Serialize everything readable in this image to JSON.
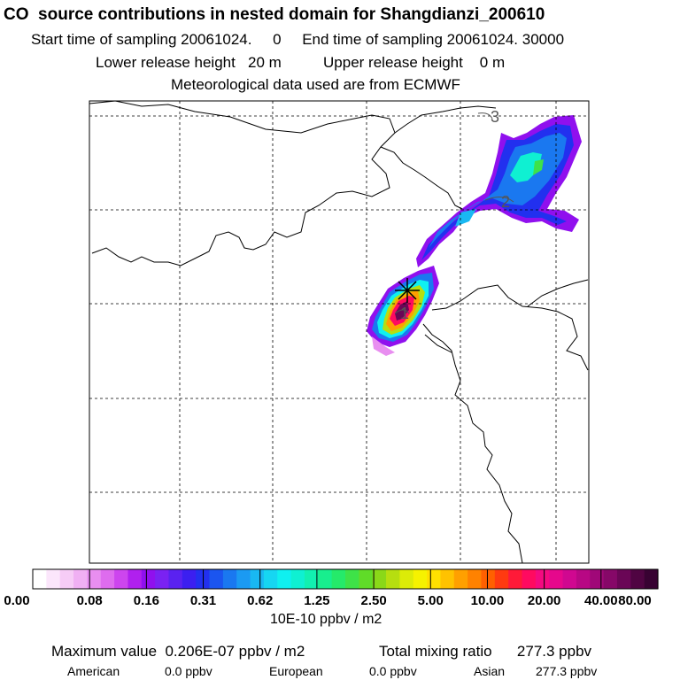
{
  "header": {
    "title": "CO  source contributions in nested domain for Shangdianzi_200610",
    "start_label": "Start time of sampling 20061024.",
    "start_hour": "0",
    "end_label": "End time of sampling 20061024. 30000",
    "lower_label": "Lower release height",
    "lower_value": "20 m",
    "upper_label": "Upper release height",
    "upper_value": "0 m",
    "met_line": "Meteorological data used are from ECMWF"
  },
  "map": {
    "contour_labels": [
      "3",
      "2",
      "1"
    ],
    "station_marker": "star",
    "gridlines": "dashed"
  },
  "colorbar": {
    "tick_labels": [
      "0.00",
      "0.08",
      "0.16",
      "0.31",
      "0.62",
      "1.25",
      "2.50",
      "5.00",
      "10.00",
      "20.00",
      "40.00",
      "80.00"
    ],
    "units": "10E-10 ppbv / m2",
    "colors": [
      "#ffffff",
      "#fbe6fb",
      "#f6ccf6",
      "#f0b0f3",
      "#e88ef0",
      "#de6cee",
      "#cd45ee",
      "#b020ee",
      "#9010ee",
      "#7a22f2",
      "#5a22f0",
      "#3c1ff0",
      "#2230ef",
      "#1b55ef",
      "#1a78f0",
      "#1b9af2",
      "#19b8f2",
      "#16d6f2",
      "#0ff0f0",
      "#0ff0d2",
      "#12f0b0",
      "#18ee8e",
      "#25ea6a",
      "#3ee248",
      "#60dc28",
      "#8ad818",
      "#b6de10",
      "#dceb08",
      "#f6f200",
      "#ffe000",
      "#ffc200",
      "#ffa000",
      "#ff8200",
      "#ff6000",
      "#ff3a10",
      "#ff1a38",
      "#ff0a60",
      "#f40a80",
      "#e6088c",
      "#d00890",
      "#b80884",
      "#a00878",
      "#860868",
      "#6a0656",
      "#500442",
      "#380232"
    ]
  },
  "footer": {
    "max_label": "Maximum value  0.206E-07 ppbv / m2",
    "total_label": "Total mixing ratio",
    "total_value": "277.3 ppbv",
    "american_label": "American",
    "american_value": "0.0 ppbv",
    "european_label": "European",
    "european_value": "0.0 ppbv",
    "asian_label": "Asian",
    "asian_value": "277.3 ppbv"
  }
}
